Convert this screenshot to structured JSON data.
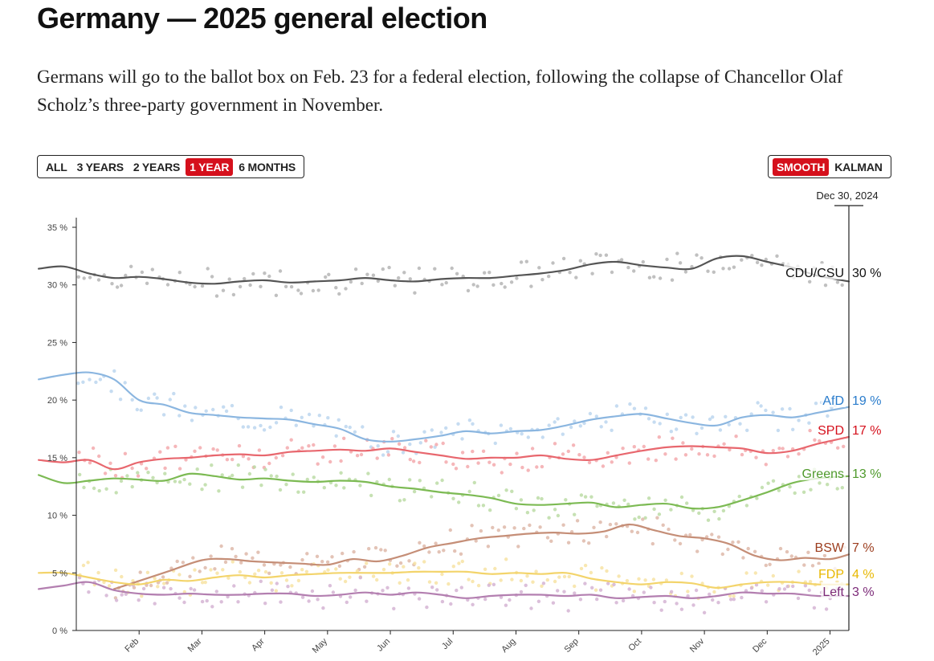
{
  "header": {
    "title": "Germany — 2025 general election",
    "subtitle": "Germans will go to the ballot box on Feb. 23 for a federal election, following the collapse of Chancellor Olaf Scholz’s three-party government in November."
  },
  "range_buttons": [
    {
      "label": "ALL",
      "active": false
    },
    {
      "label": "3 YEARS",
      "active": false
    },
    {
      "label": "2 YEARS",
      "active": false
    },
    {
      "label": "1 YEAR",
      "active": true
    },
    {
      "label": "6 MONTHS",
      "active": false
    }
  ],
  "mode_buttons": [
    {
      "label": "SMOOTH",
      "active": true
    },
    {
      "label": "KALMAN",
      "active": false
    }
  ],
  "cursor_date": "Dec 30, 2024",
  "colors": {
    "active_button": "#d5101c"
  },
  "chart_data": {
    "type": "line",
    "xlabel": "",
    "ylabel": "",
    "ylim": [
      0,
      35
    ],
    "yticks": [
      0,
      5,
      10,
      15,
      20,
      25,
      30,
      35
    ],
    "ytick_labels": [
      "0 %",
      "5 %",
      "10 %",
      "15 %",
      "20 %",
      "25 %",
      "30 %",
      "35 %"
    ],
    "x_range": [
      0,
      12.3
    ],
    "x_unit": "months from early January 2024",
    "xticks": [
      1,
      2,
      3,
      4,
      5,
      6,
      7,
      8,
      9,
      10,
      11,
      12
    ],
    "xtick_labels": [
      "Feb",
      "Mar",
      "Apr",
      "May",
      "Jun",
      "Jul",
      "Aug",
      "Sep",
      "Oct",
      "Nov",
      "Dec",
      "2025"
    ],
    "grid": false,
    "legend": "end-of-line labels on right",
    "series": [
      {
        "name": "CDU/CSU",
        "end_label": "30 %",
        "color": "#555555",
        "point_color": "#b5b5b5",
        "label_color": "#111111",
        "x": [
          -0.6,
          -0.2,
          0.2,
          0.6,
          1.0,
          1.4,
          1.8,
          2.2,
          2.6,
          3.0,
          3.4,
          3.8,
          4.2,
          4.6,
          5.0,
          5.4,
          5.8,
          6.2,
          6.6,
          7.0,
          7.4,
          7.8,
          8.2,
          8.6,
          9.0,
          9.4,
          9.8,
          10.2,
          10.6,
          11.0,
          11.4,
          11.8,
          12.3
        ],
        "y": [
          31.4,
          31.6,
          31.0,
          30.6,
          30.7,
          30.5,
          30.2,
          30.1,
          30.3,
          30.4,
          30.2,
          30.3,
          30.4,
          30.6,
          30.4,
          30.3,
          30.5,
          30.6,
          30.6,
          30.8,
          31.0,
          31.3,
          31.8,
          32.0,
          31.7,
          31.5,
          31.4,
          32.3,
          32.5,
          32.0,
          31.5,
          30.8,
          30.3
        ]
      },
      {
        "name": "AfD",
        "end_label": "19 %",
        "color": "#8bb6e0",
        "point_color": "#bcd6ef",
        "label_color": "#2a7ccc",
        "x": [
          -0.6,
          -0.2,
          0.2,
          0.6,
          1.0,
          1.4,
          1.8,
          2.2,
          2.6,
          3.0,
          3.4,
          3.8,
          4.2,
          4.6,
          5.0,
          5.4,
          5.8,
          6.2,
          6.6,
          7.0,
          7.4,
          7.8,
          8.2,
          8.6,
          9.0,
          9.4,
          9.8,
          10.2,
          10.6,
          11.0,
          11.4,
          11.8,
          12.3
        ],
        "y": [
          21.8,
          22.2,
          22.4,
          21.8,
          20.0,
          19.6,
          18.9,
          18.7,
          18.5,
          18.4,
          18.3,
          17.9,
          17.5,
          16.6,
          16.4,
          16.6,
          16.9,
          17.3,
          17.1,
          17.3,
          17.4,
          17.8,
          18.3,
          18.6,
          18.8,
          18.4,
          18.0,
          17.8,
          18.5,
          18.7,
          18.5,
          18.9,
          19.4
        ]
      },
      {
        "name": "SPD",
        "end_label": "17 %",
        "color": "#e8676e",
        "point_color": "#f3a9ad",
        "label_color": "#d5101c",
        "x": [
          -0.6,
          -0.2,
          0.2,
          0.6,
          1.0,
          1.4,
          1.8,
          2.2,
          2.6,
          3.0,
          3.4,
          3.8,
          4.2,
          4.6,
          5.0,
          5.4,
          5.8,
          6.2,
          6.6,
          7.0,
          7.4,
          7.8,
          8.2,
          8.6,
          9.0,
          9.4,
          9.8,
          10.2,
          10.6,
          11.0,
          11.4,
          11.8,
          12.3
        ],
        "y": [
          14.8,
          14.6,
          14.8,
          14.0,
          14.6,
          14.9,
          15.0,
          15.2,
          15.3,
          15.2,
          15.5,
          15.6,
          15.7,
          15.6,
          15.8,
          15.5,
          15.2,
          14.9,
          15.0,
          15.0,
          15.2,
          14.9,
          14.8,
          15.2,
          15.6,
          15.9,
          16.0,
          15.9,
          15.8,
          15.4,
          15.6,
          16.2,
          16.8
        ]
      },
      {
        "name": "Greens",
        "end_label": "13 %",
        "color": "#7cba53",
        "point_color": "#bcdca6",
        "label_color": "#4f9a2c",
        "x": [
          -0.6,
          -0.2,
          0.2,
          0.6,
          1.0,
          1.4,
          1.8,
          2.2,
          2.6,
          3.0,
          3.4,
          3.8,
          4.2,
          4.6,
          5.0,
          5.4,
          5.8,
          6.2,
          6.6,
          7.0,
          7.4,
          7.8,
          8.2,
          8.6,
          9.0,
          9.4,
          9.8,
          10.2,
          10.6,
          11.0,
          11.4,
          11.8,
          12.3
        ],
        "y": [
          13.5,
          12.8,
          13.0,
          13.2,
          13.1,
          13.0,
          13.6,
          13.4,
          13.1,
          13.2,
          13.0,
          12.9,
          13.0,
          12.9,
          12.5,
          12.3,
          12.0,
          11.8,
          11.5,
          11.0,
          10.9,
          11.0,
          11.1,
          10.7,
          10.9,
          11.0,
          10.6,
          10.7,
          11.3,
          12.0,
          12.8,
          13.2,
          13.4
        ]
      },
      {
        "name": "BSW",
        "end_label": "7 %",
        "color": "#c58e77",
        "point_color": "#deb9a9",
        "label_color": "#9c3d1e",
        "x": [
          0.6,
          1.0,
          1.5,
          2.0,
          2.4,
          2.8,
          3.2,
          3.6,
          4.0,
          4.4,
          4.8,
          5.2,
          5.6,
          6.0,
          6.4,
          6.8,
          7.2,
          7.6,
          8.0,
          8.4,
          8.8,
          9.2,
          9.6,
          10.0,
          10.4,
          10.8,
          11.2,
          11.6,
          12.0,
          12.3
        ],
        "y": [
          3.6,
          4.3,
          5.2,
          6.1,
          6.2,
          6.0,
          5.9,
          5.8,
          5.7,
          6.2,
          6.0,
          6.5,
          7.2,
          7.6,
          8.0,
          8.2,
          8.4,
          8.5,
          8.4,
          8.6,
          9.2,
          8.7,
          8.2,
          8.0,
          7.5,
          6.5,
          6.1,
          6.3,
          6.2,
          6.6
        ]
      },
      {
        "name": "FDP",
        "end_label": "4 %",
        "color": "#f3d46b",
        "point_color": "#f7e3a3",
        "label_color": "#e8b800",
        "x": [
          -0.6,
          -0.2,
          0.2,
          0.6,
          1.0,
          1.4,
          1.8,
          2.2,
          2.6,
          3.0,
          3.4,
          3.8,
          4.2,
          4.6,
          5.0,
          5.4,
          5.8,
          6.2,
          6.6,
          7.0,
          7.4,
          7.8,
          8.2,
          8.6,
          9.0,
          9.4,
          9.8,
          10.2,
          10.6,
          11.0,
          11.4,
          11.8,
          12.3
        ],
        "y": [
          5.0,
          5.0,
          4.6,
          4.2,
          4.0,
          4.4,
          4.3,
          4.6,
          4.8,
          4.6,
          4.8,
          4.9,
          5.0,
          5.0,
          5.0,
          5.1,
          5.1,
          5.1,
          4.9,
          5.0,
          4.9,
          5.0,
          4.5,
          4.2,
          4.0,
          4.2,
          4.1,
          3.7,
          4.0,
          4.2,
          4.2,
          4.0,
          4.0
        ]
      },
      {
        "name": "Left",
        "end_label": "3 %",
        "color": "#b37fb0",
        "point_color": "#d5b4d3",
        "label_color": "#7c2a78",
        "x": [
          -0.6,
          -0.2,
          0.2,
          0.6,
          1.0,
          1.4,
          1.8,
          2.2,
          2.6,
          3.0,
          3.4,
          3.8,
          4.2,
          4.6,
          5.0,
          5.4,
          5.8,
          6.2,
          6.6,
          7.0,
          7.4,
          7.8,
          8.2,
          8.6,
          9.0,
          9.4,
          9.8,
          10.2,
          10.6,
          11.0,
          11.4,
          11.8,
          12.3
        ],
        "y": [
          3.6,
          3.9,
          4.2,
          3.5,
          3.2,
          3.1,
          3.2,
          3.1,
          3.1,
          3.2,
          3.2,
          3.0,
          3.1,
          3.3,
          3.1,
          3.3,
          3.1,
          2.8,
          3.0,
          3.1,
          3.1,
          3.0,
          3.1,
          2.8,
          2.9,
          3.0,
          2.8,
          3.0,
          3.3,
          3.2,
          3.2,
          3.0,
          3.0
        ]
      }
    ]
  }
}
